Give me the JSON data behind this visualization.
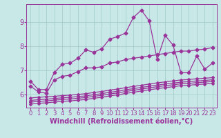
{
  "bg_color": "#c8e8e8",
  "line_color": "#993399",
  "grid_color": "#a0c8c8",
  "xlabel": "Windchill (Refroidissement éolien,°C)",
  "xlim": [
    -0.5,
    23.5
  ],
  "ylim": [
    5.45,
    9.75
  ],
  "yticks": [
    6,
    7,
    8,
    9
  ],
  "xticks": [
    0,
    1,
    2,
    3,
    4,
    5,
    6,
    7,
    8,
    9,
    10,
    11,
    12,
    13,
    14,
    15,
    16,
    17,
    18,
    19,
    20,
    21,
    22,
    23
  ],
  "main_line": {
    "x": [
      0,
      1,
      2,
      3,
      4,
      5,
      6,
      7,
      8,
      9,
      10,
      11,
      12,
      13,
      14,
      15,
      16,
      17,
      18,
      19,
      20,
      21,
      22,
      23
    ],
    "y": [
      6.55,
      6.2,
      6.2,
      6.9,
      7.25,
      7.3,
      7.5,
      7.85,
      7.75,
      7.9,
      8.3,
      8.4,
      8.55,
      9.2,
      9.5,
      9.05,
      7.45,
      8.45,
      8.05,
      6.9,
      6.9,
      7.6,
      7.05,
      7.3
    ]
  },
  "medium_line": {
    "x": [
      0,
      1,
      2,
      3,
      4,
      5,
      6,
      7,
      8,
      9,
      10,
      11,
      12,
      13,
      14,
      15,
      16,
      17,
      18,
      19,
      20,
      21,
      22,
      23
    ],
    "y": [
      6.35,
      6.1,
      6.05,
      6.6,
      6.75,
      6.8,
      6.95,
      7.1,
      7.1,
      7.15,
      7.3,
      7.35,
      7.45,
      7.5,
      7.55,
      7.6,
      7.65,
      7.7,
      7.75,
      7.8,
      7.8,
      7.85,
      7.88,
      7.95
    ]
  },
  "lower_lines": [
    {
      "x": [
        0,
        1,
        2,
        3,
        4,
        5,
        6,
        7,
        8,
        9,
        10,
        11,
        12,
        13,
        14,
        15,
        16,
        17,
        18,
        19,
        20,
        21,
        22,
        23
      ],
      "y": [
        5.85,
        5.88,
        5.9,
        5.92,
        5.95,
        5.97,
        6.0,
        6.03,
        6.08,
        6.12,
        6.18,
        6.22,
        6.28,
        6.33,
        6.38,
        6.43,
        6.48,
        6.52,
        6.56,
        6.6,
        6.62,
        6.65,
        6.67,
        6.7
      ]
    },
    {
      "x": [
        0,
        1,
        2,
        3,
        4,
        5,
        6,
        7,
        8,
        9,
        10,
        11,
        12,
        13,
        14,
        15,
        16,
        17,
        18,
        19,
        20,
        21,
        22,
        23
      ],
      "y": [
        5.75,
        5.78,
        5.8,
        5.83,
        5.86,
        5.88,
        5.91,
        5.94,
        5.99,
        6.03,
        6.09,
        6.13,
        6.19,
        6.24,
        6.29,
        6.34,
        6.39,
        6.43,
        6.47,
        6.51,
        6.53,
        6.56,
        6.58,
        6.61
      ]
    },
    {
      "x": [
        0,
        1,
        2,
        3,
        4,
        5,
        6,
        7,
        8,
        9,
        10,
        11,
        12,
        13,
        14,
        15,
        16,
        17,
        18,
        19,
        20,
        21,
        22,
        23
      ],
      "y": [
        5.68,
        5.71,
        5.73,
        5.76,
        5.79,
        5.81,
        5.84,
        5.87,
        5.92,
        5.96,
        6.02,
        6.06,
        6.12,
        6.17,
        6.22,
        6.27,
        6.32,
        6.36,
        6.4,
        6.44,
        6.46,
        6.49,
        6.51,
        6.54
      ]
    },
    {
      "x": [
        0,
        1,
        2,
        3,
        4,
        5,
        6,
        7,
        8,
        9,
        10,
        11,
        12,
        13,
        14,
        15,
        16,
        17,
        18,
        19,
        20,
        21,
        22,
        23
      ],
      "y": [
        5.6,
        5.63,
        5.65,
        5.68,
        5.71,
        5.73,
        5.76,
        5.79,
        5.84,
        5.88,
        5.94,
        5.98,
        6.04,
        6.09,
        6.14,
        6.19,
        6.24,
        6.28,
        6.32,
        6.36,
        6.38,
        6.41,
        6.43,
        6.46
      ]
    }
  ],
  "marker": "D",
  "markersize": 2.5,
  "linewidth": 0.9,
  "xlabel_fontsize": 7,
  "tick_fontsize": 6,
  "figsize": [
    3.2,
    2.0
  ],
  "dpi": 100
}
